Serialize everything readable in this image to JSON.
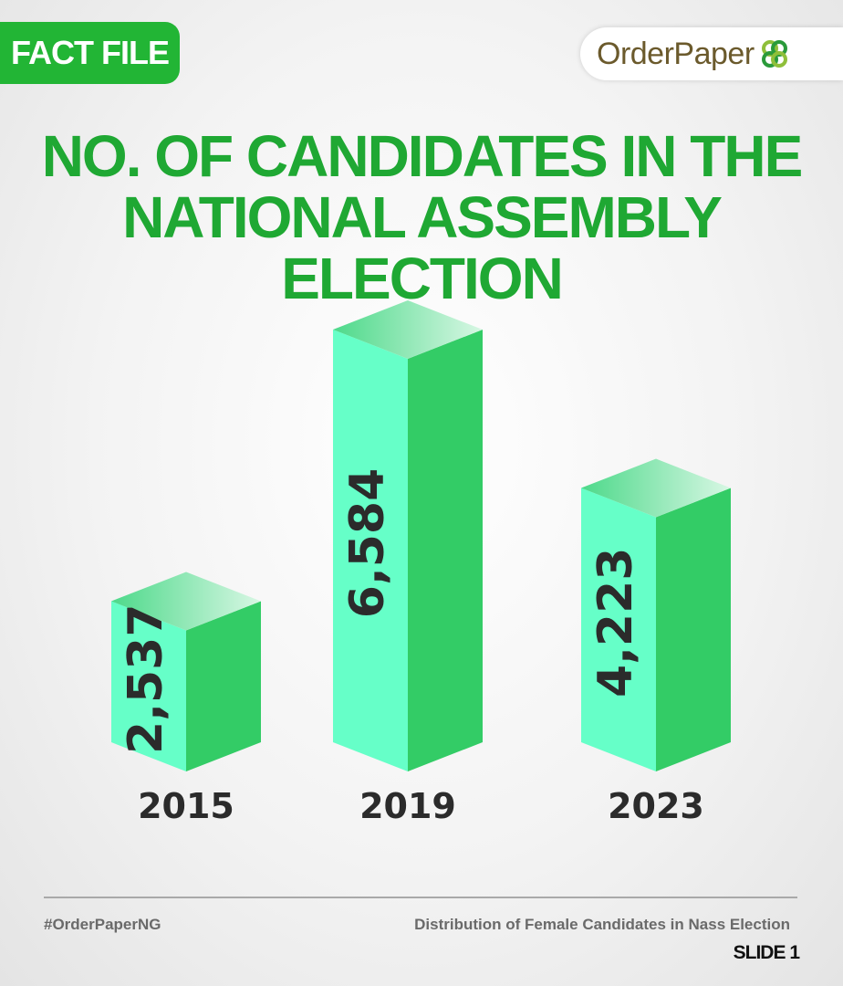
{
  "header": {
    "badge": "FACT FILE",
    "logo_text": "OrderPaper"
  },
  "title_lines": [
    "NO. OF CANDIDATES IN THE",
    "NATIONAL ASSEMBLY ELECTION"
  ],
  "chart_data": {
    "type": "bar",
    "categories": [
      "2015",
      "2019",
      "2023"
    ],
    "values": [
      2537,
      6584,
      4223
    ],
    "value_labels": [
      "2,537",
      "6,584",
      "4,223"
    ],
    "title": "NO. OF CANDIDATES IN THE NATIONAL ASSEMBLY ELECTION",
    "xlabel": "",
    "ylabel": "",
    "grid": false,
    "legend": "none"
  },
  "colors": {
    "accent_green": "#22b535",
    "bar_front": "#66ffc8",
    "bar_side": "#33cc66",
    "bar_top": "#a6f2c4",
    "label_dark": "#2b2b2b"
  },
  "footer": {
    "hashtag": "#OrderPaperNG",
    "note": "Distribution of Female Candidates in Nass Election",
    "slide": "SLIDE 1"
  }
}
